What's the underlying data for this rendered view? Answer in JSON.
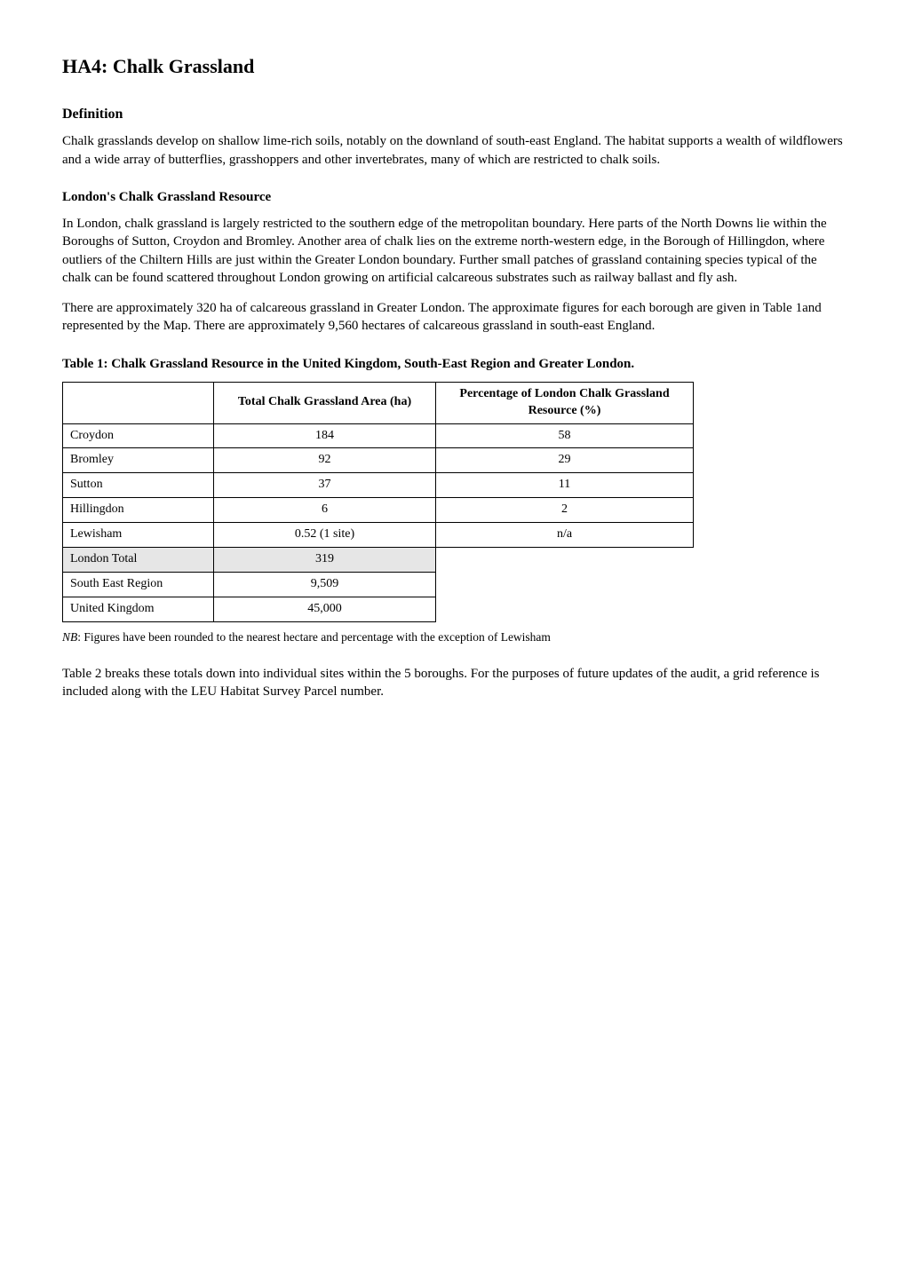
{
  "title": "HA4: Chalk Grassland",
  "definition": {
    "heading": "Definition",
    "para1": "Chalk grasslands develop on shallow lime-rich soils, notably on the downland of south-east England. The habitat supports a wealth of wildflowers and a wide array of butterflies, grasshoppers and other invertebrates, many of which are restricted to chalk soils."
  },
  "resource": {
    "heading": "London's Chalk Grassland Resource",
    "para1": "In London, chalk grassland is largely restricted to the southern edge of the metropolitan boundary. Here parts of the North Downs lie within the Boroughs of Sutton, Croydon and Bromley. Another area of chalk lies on the extreme north-western edge, in the Borough of Hillingdon, where outliers of the Chiltern Hills are just within the Greater London boundary. Further small patches of grassland containing species typical of the chalk can be found scattered throughout London growing on artificial calcareous substrates such as railway ballast and fly ash.",
    "para2": "There are approximately 320 ha of calcareous grassland in Greater London. The approximate figures for each borough are given in Table 1and represented by the Map. There are approximately 9,560 hectares of calcareous grassland in south-east England."
  },
  "table1": {
    "caption": "Table 1: Chalk Grassland Resource in the United Kingdom, South-East Region and Greater London.",
    "columns": [
      "",
      "Total Chalk Grassland Area (ha)",
      "Percentage of London Chalk Grassland Resource (%)"
    ],
    "rows": [
      {
        "label": "Croydon",
        "area": "184",
        "pct": "58",
        "shaded": false,
        "showPct": true
      },
      {
        "label": "Bromley",
        "area": "92",
        "pct": "29",
        "shaded": false,
        "showPct": true
      },
      {
        "label": "Sutton",
        "area": "37",
        "pct": "11",
        "shaded": false,
        "showPct": true
      },
      {
        "label": "Hillingdon",
        "area": "6",
        "pct": "2",
        "shaded": false,
        "showPct": true
      },
      {
        "label": "Lewisham",
        "area": "0.52 (1 site)",
        "pct": "n/a",
        "shaded": false,
        "showPct": true
      },
      {
        "label": "London Total",
        "area": "319",
        "pct": "",
        "shaded": true,
        "showPct": false
      },
      {
        "label": "South East Region",
        "area": "9,509",
        "pct": "",
        "shaded": false,
        "showPct": false
      },
      {
        "label": "United Kingdom",
        "area": "45,000",
        "pct": "",
        "shaded": false,
        "showPct": false
      }
    ],
    "note_prefix": "NB",
    "note_text": ": Figures have been rounded to the nearest hectare and percentage with the exception of Lewisham"
  },
  "closing": {
    "para": "Table 2 breaks these totals down into individual sites within the 5 boroughs. For the purposes of future updates of the audit, a grid reference is included along with the LEU Habitat Survey Parcel number."
  },
  "style": {
    "body_font": "Times New Roman",
    "background": "#ffffff",
    "text_color": "#000000",
    "border_color": "#000000",
    "shaded_row_color": "#e6e6e6"
  }
}
